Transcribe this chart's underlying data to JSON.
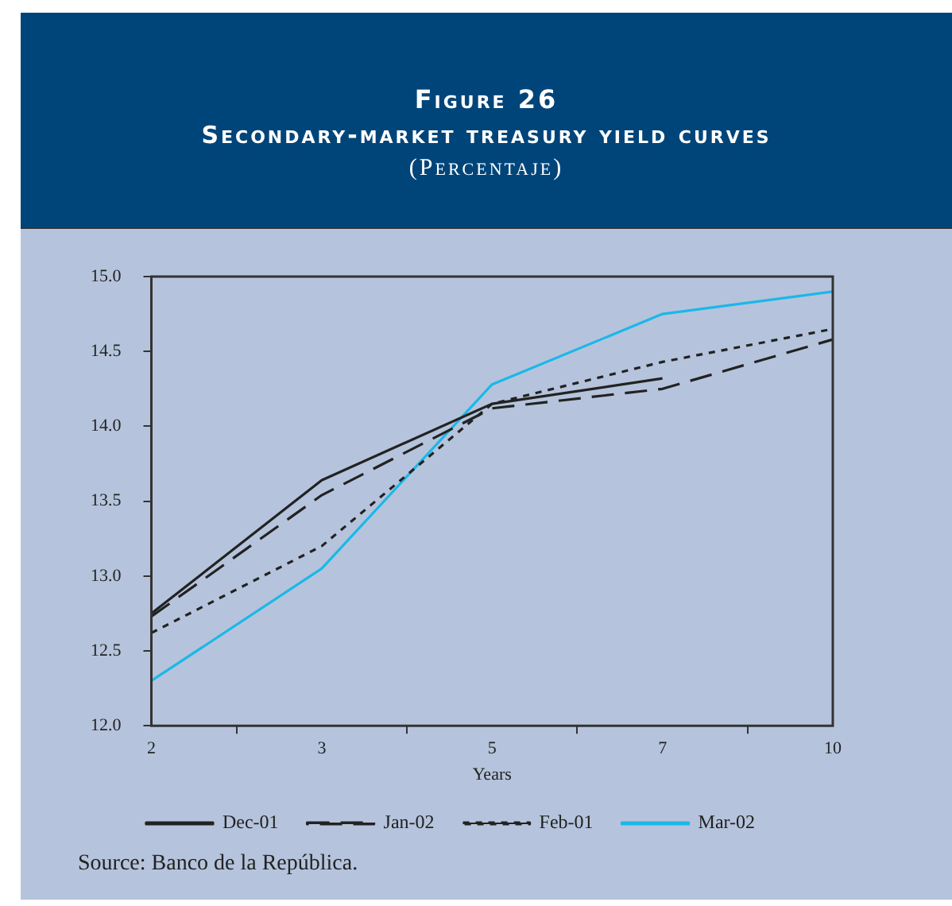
{
  "chart_data": {
    "type": "line",
    "title": "Figure 26",
    "subtitle": "Secondary-market treasury yield curves\n(Percentaje)",
    "xlabel": "Years",
    "categories": [
      "2",
      "3",
      "5",
      "7",
      "10"
    ],
    "series": [
      {
        "name": "Dec-01",
        "color": "#222222",
        "line_style": "solid",
        "values": [
          12.75,
          13.64,
          14.15,
          14.32,
          null
        ]
      },
      {
        "name": "Jan-02",
        "color": "#222222",
        "line_style": "dashed",
        "values": [
          12.73,
          13.54,
          14.12,
          14.25,
          14.58
        ]
      },
      {
        "name": "Feb-01",
        "color": "#222222",
        "line_style": "dotted",
        "values": [
          12.62,
          13.2,
          14.15,
          14.43,
          14.65
        ]
      },
      {
        "name": "Mar-02",
        "color": "#1ab8e8",
        "line_style": "solid",
        "values": [
          12.3,
          13.05,
          14.28,
          14.75,
          14.9
        ]
      }
    ],
    "ylim": [
      12,
      15
    ],
    "yticks": [
      {
        "value": 12,
        "label": "12.0"
      },
      {
        "value": 12.5,
        "label": "12.5"
      },
      {
        "value": 13,
        "label": "13.0"
      },
      {
        "value": 13.5,
        "label": "13.5"
      },
      {
        "value": 14,
        "label": "14.0"
      },
      {
        "value": 14.5,
        "label": "14.5"
      },
      {
        "value": 15,
        "label": "15.0"
      }
    ],
    "grid": false,
    "legend": "bottom",
    "marker": "none",
    "annotations": [
      "Source: Banco de la República."
    ]
  }
}
